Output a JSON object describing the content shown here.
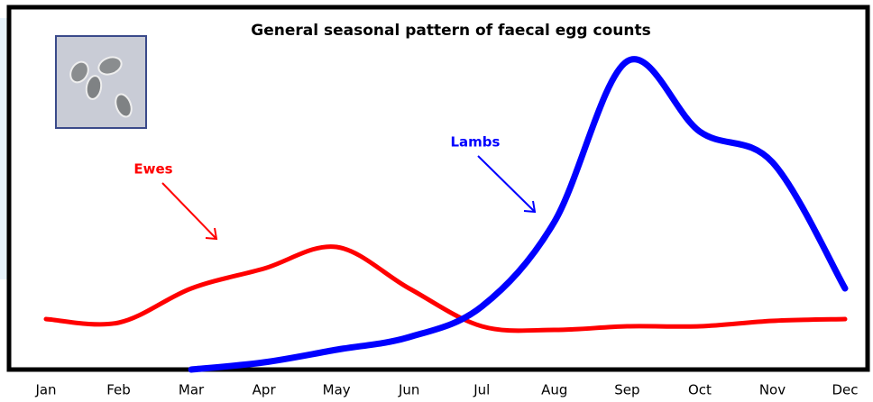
{
  "chart_data": {
    "type": "line",
    "title": "General seasonal pattern of faecal egg counts",
    "categories": [
      "Jan",
      "Feb",
      "Mar",
      "Apr",
      "May",
      "Jun",
      "Jul",
      "Aug",
      "Sep",
      "Oct",
      "Nov",
      "Dec"
    ],
    "series": [
      {
        "name": "Ewes",
        "color": "#ff0000",
        "values": [
          14,
          13,
          22.5,
          28,
          34,
          22.5,
          12,
          11,
          12,
          12,
          13.5,
          14
        ]
      },
      {
        "name": "Lambs",
        "color": "#0000ff",
        "values": [
          null,
          null,
          0,
          2,
          5.5,
          9,
          17.5,
          41,
          85.5,
          66,
          57.5,
          22.5
        ]
      }
    ],
    "ylim": [
      0,
      100
    ]
  }
}
